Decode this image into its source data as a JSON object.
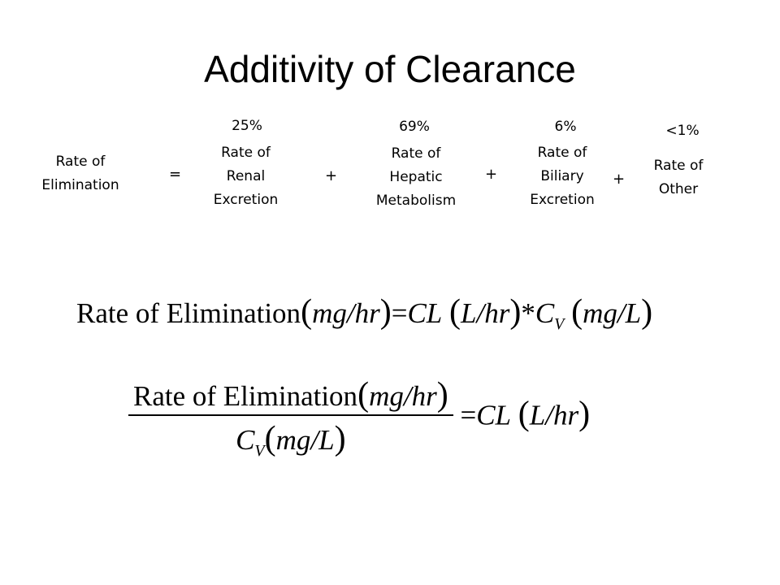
{
  "title": "Additivity of Clearance",
  "terms": [
    {
      "label": "Rate of Elimination",
      "pct": ""
    },
    {
      "label": "Rate of Renal Excretion",
      "pct": "25%"
    },
    {
      "label": "Rate of Hepatic Metabolism",
      "pct": "69%"
    },
    {
      "label": "Rate of Biliary Excretion",
      "pct": "6%"
    },
    {
      "label": "Rate of Other",
      "pct": "<1%"
    }
  ],
  "operators": [
    "=",
    "+",
    "+",
    "+"
  ],
  "equation1": {
    "lhs": "Rate of Elimination",
    "lhs_unit": "mg/hr",
    "equals": "=",
    "cl": "CL",
    "cl_unit": "L/hr",
    "times": "*",
    "cv": "C",
    "cv_sub": "V",
    "cv_unit": "mg/L"
  },
  "equation2": {
    "numerator": "Rate of Elimination",
    "numerator_unit": "mg/hr",
    "denominator": "C",
    "denominator_sub": "V",
    "denominator_unit": "mg/L",
    "equals": "=",
    "cl": "CL",
    "cl_unit": "L/hr"
  }
}
